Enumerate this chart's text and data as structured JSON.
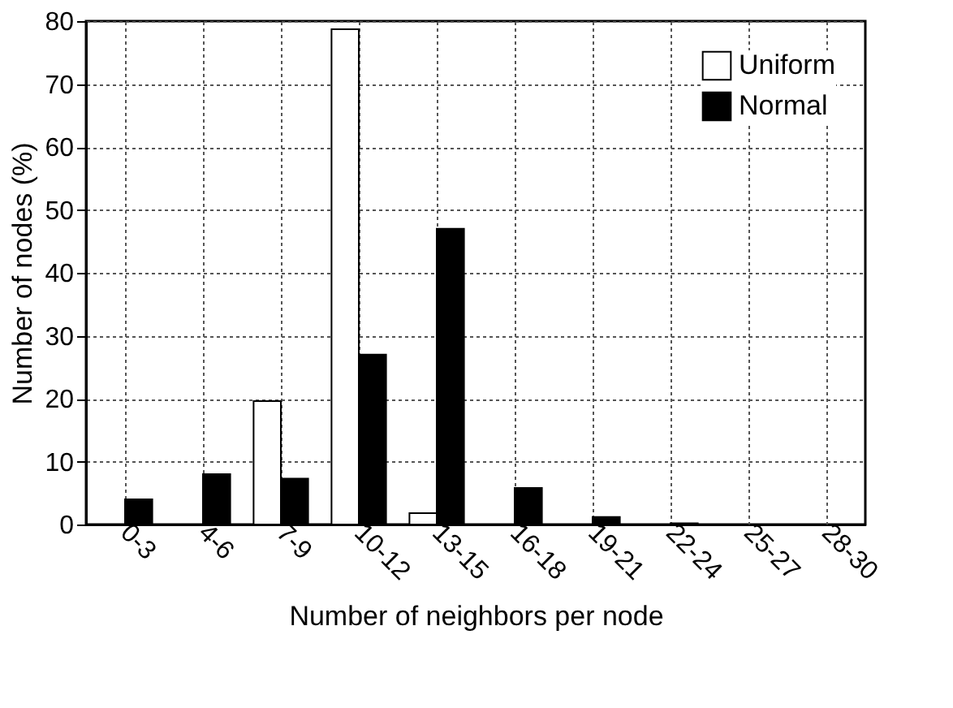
{
  "chart_data": {
    "type": "bar",
    "xlabel": "Number of neighbors per node",
    "ylabel": "Number of nodes (%)",
    "categories": [
      "0-3",
      "4-6",
      "7-9",
      "10-12",
      "13-15",
      "16-18",
      "19-21",
      "22-24",
      "25-27",
      "28-30"
    ],
    "series": [
      {
        "name": "Uniform",
        "color": "#ffffff",
        "values": [
          0,
          0,
          19.6,
          78.7,
          1.8,
          0,
          0,
          0,
          0,
          0
        ]
      },
      {
        "name": "Normal",
        "color": "#000000",
        "values": [
          4.0,
          8.0,
          7.3,
          27,
          47,
          5.8,
          1.2,
          0.2,
          0,
          0
        ]
      }
    ],
    "ylim": [
      0,
      80
    ],
    "yticks": [
      0,
      10,
      20,
      30,
      40,
      50,
      60,
      70,
      80
    ],
    "grid": true,
    "legend": "top right"
  }
}
